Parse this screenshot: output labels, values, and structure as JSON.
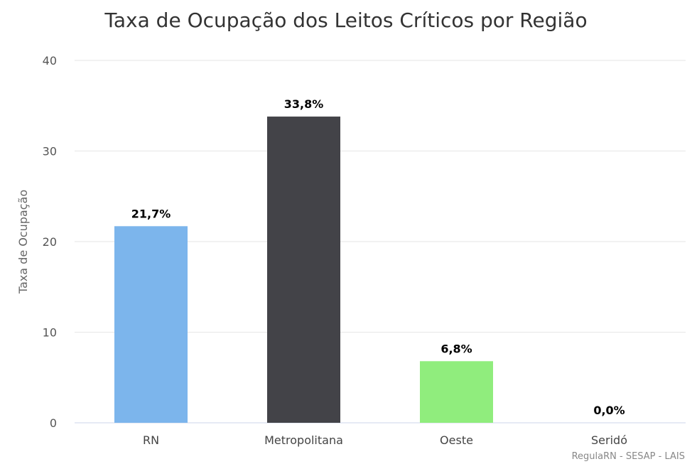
{
  "chart_data": {
    "type": "bar",
    "title": "Taxa de Ocupação dos Leitos Críticos por Região",
    "xlabel": "",
    "ylabel": "Taxa de Ocupação",
    "ylim": [
      0,
      40
    ],
    "yticks": [
      "0",
      "10",
      "20",
      "30",
      "40"
    ],
    "categories": [
      "RN",
      "Metropolitana",
      "Oeste",
      "Seridó"
    ],
    "values": [
      21.7,
      33.8,
      6.8,
      0.0
    ],
    "data_labels": [
      "21,7%",
      "33,8%",
      "6,8%",
      "0,0%"
    ],
    "colors": [
      "#7cb5ec",
      "#434348",
      "#90ed7d",
      "#f7a35c"
    ],
    "grid": true,
    "legend": "none"
  },
  "credits": "RegulaRN - SESAP - LAIS"
}
